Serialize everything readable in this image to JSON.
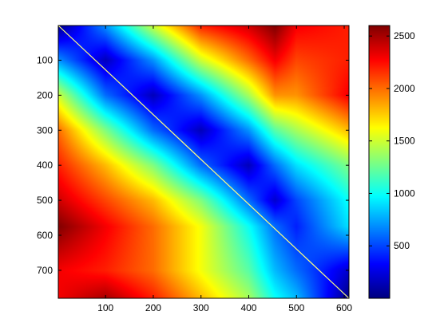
{
  "chart_data": {
    "type": "heatmap",
    "title": "",
    "xlabel": "",
    "ylabel": "",
    "description_values": "Distance-like matrix: value ~0 on the diagonal, increasing away from it up to ~2600 at the off-diagonal corners; secondary discontinuities near x≈455 and y≈575.",
    "x_range": [
      1,
      610
    ],
    "y_range": [
      1,
      780
    ],
    "y_reversed": true,
    "x_ticks": [
      100,
      200,
      300,
      400,
      500,
      600
    ],
    "y_ticks": [
      100,
      200,
      300,
      400,
      500,
      600,
      700
    ],
    "x_tick_labels": [
      "100",
      "200",
      "300",
      "400",
      "500",
      "600"
    ],
    "y_tick_labels": [
      "100",
      "200",
      "300",
      "400",
      "500",
      "600",
      "700"
    ],
    "colormap": "jet",
    "color_range": [
      0,
      2600
    ],
    "colorbar_ticks": [
      500,
      1000,
      1500,
      2000,
      2500
    ],
    "colorbar_tick_labels": [
      "500",
      "1000",
      "1500",
      "2000",
      "2500"
    ],
    "diagonal_line_color": "#ffff80",
    "grid": false,
    "grid_samples": {
      "x": [
        1,
        100,
        200,
        300,
        400,
        455,
        500,
        610
      ],
      "y": [
        1,
        100,
        200,
        300,
        400,
        500,
        575,
        700,
        780
      ],
      "note": "approximate values read from colour",
      "values": [
        [
          0,
          700,
          1500,
          2200,
          2400,
          2600,
          2300,
          2200
        ],
        [
          700,
          150,
          700,
          1500,
          2000,
          2300,
          2100,
          2200
        ],
        [
          1500,
          600,
          150,
          700,
          1400,
          1900,
          1900,
          2300
        ],
        [
          2000,
          1300,
          600,
          150,
          700,
          1200,
          1400,
          1800
        ],
        [
          2200,
          1800,
          1300,
          600,
          150,
          600,
          900,
          1300
        ],
        [
          2400,
          2100,
          1800,
          1300,
          600,
          200,
          500,
          1000
        ],
        [
          2600,
          2300,
          2000,
          1600,
          1000,
          600,
          400,
          900
        ],
        [
          2300,
          2200,
          2000,
          1600,
          1200,
          800,
          600,
          200
        ],
        [
          2300,
          2500,
          2200,
          1800,
          1400,
          1000,
          800,
          0
        ]
      ]
    }
  }
}
